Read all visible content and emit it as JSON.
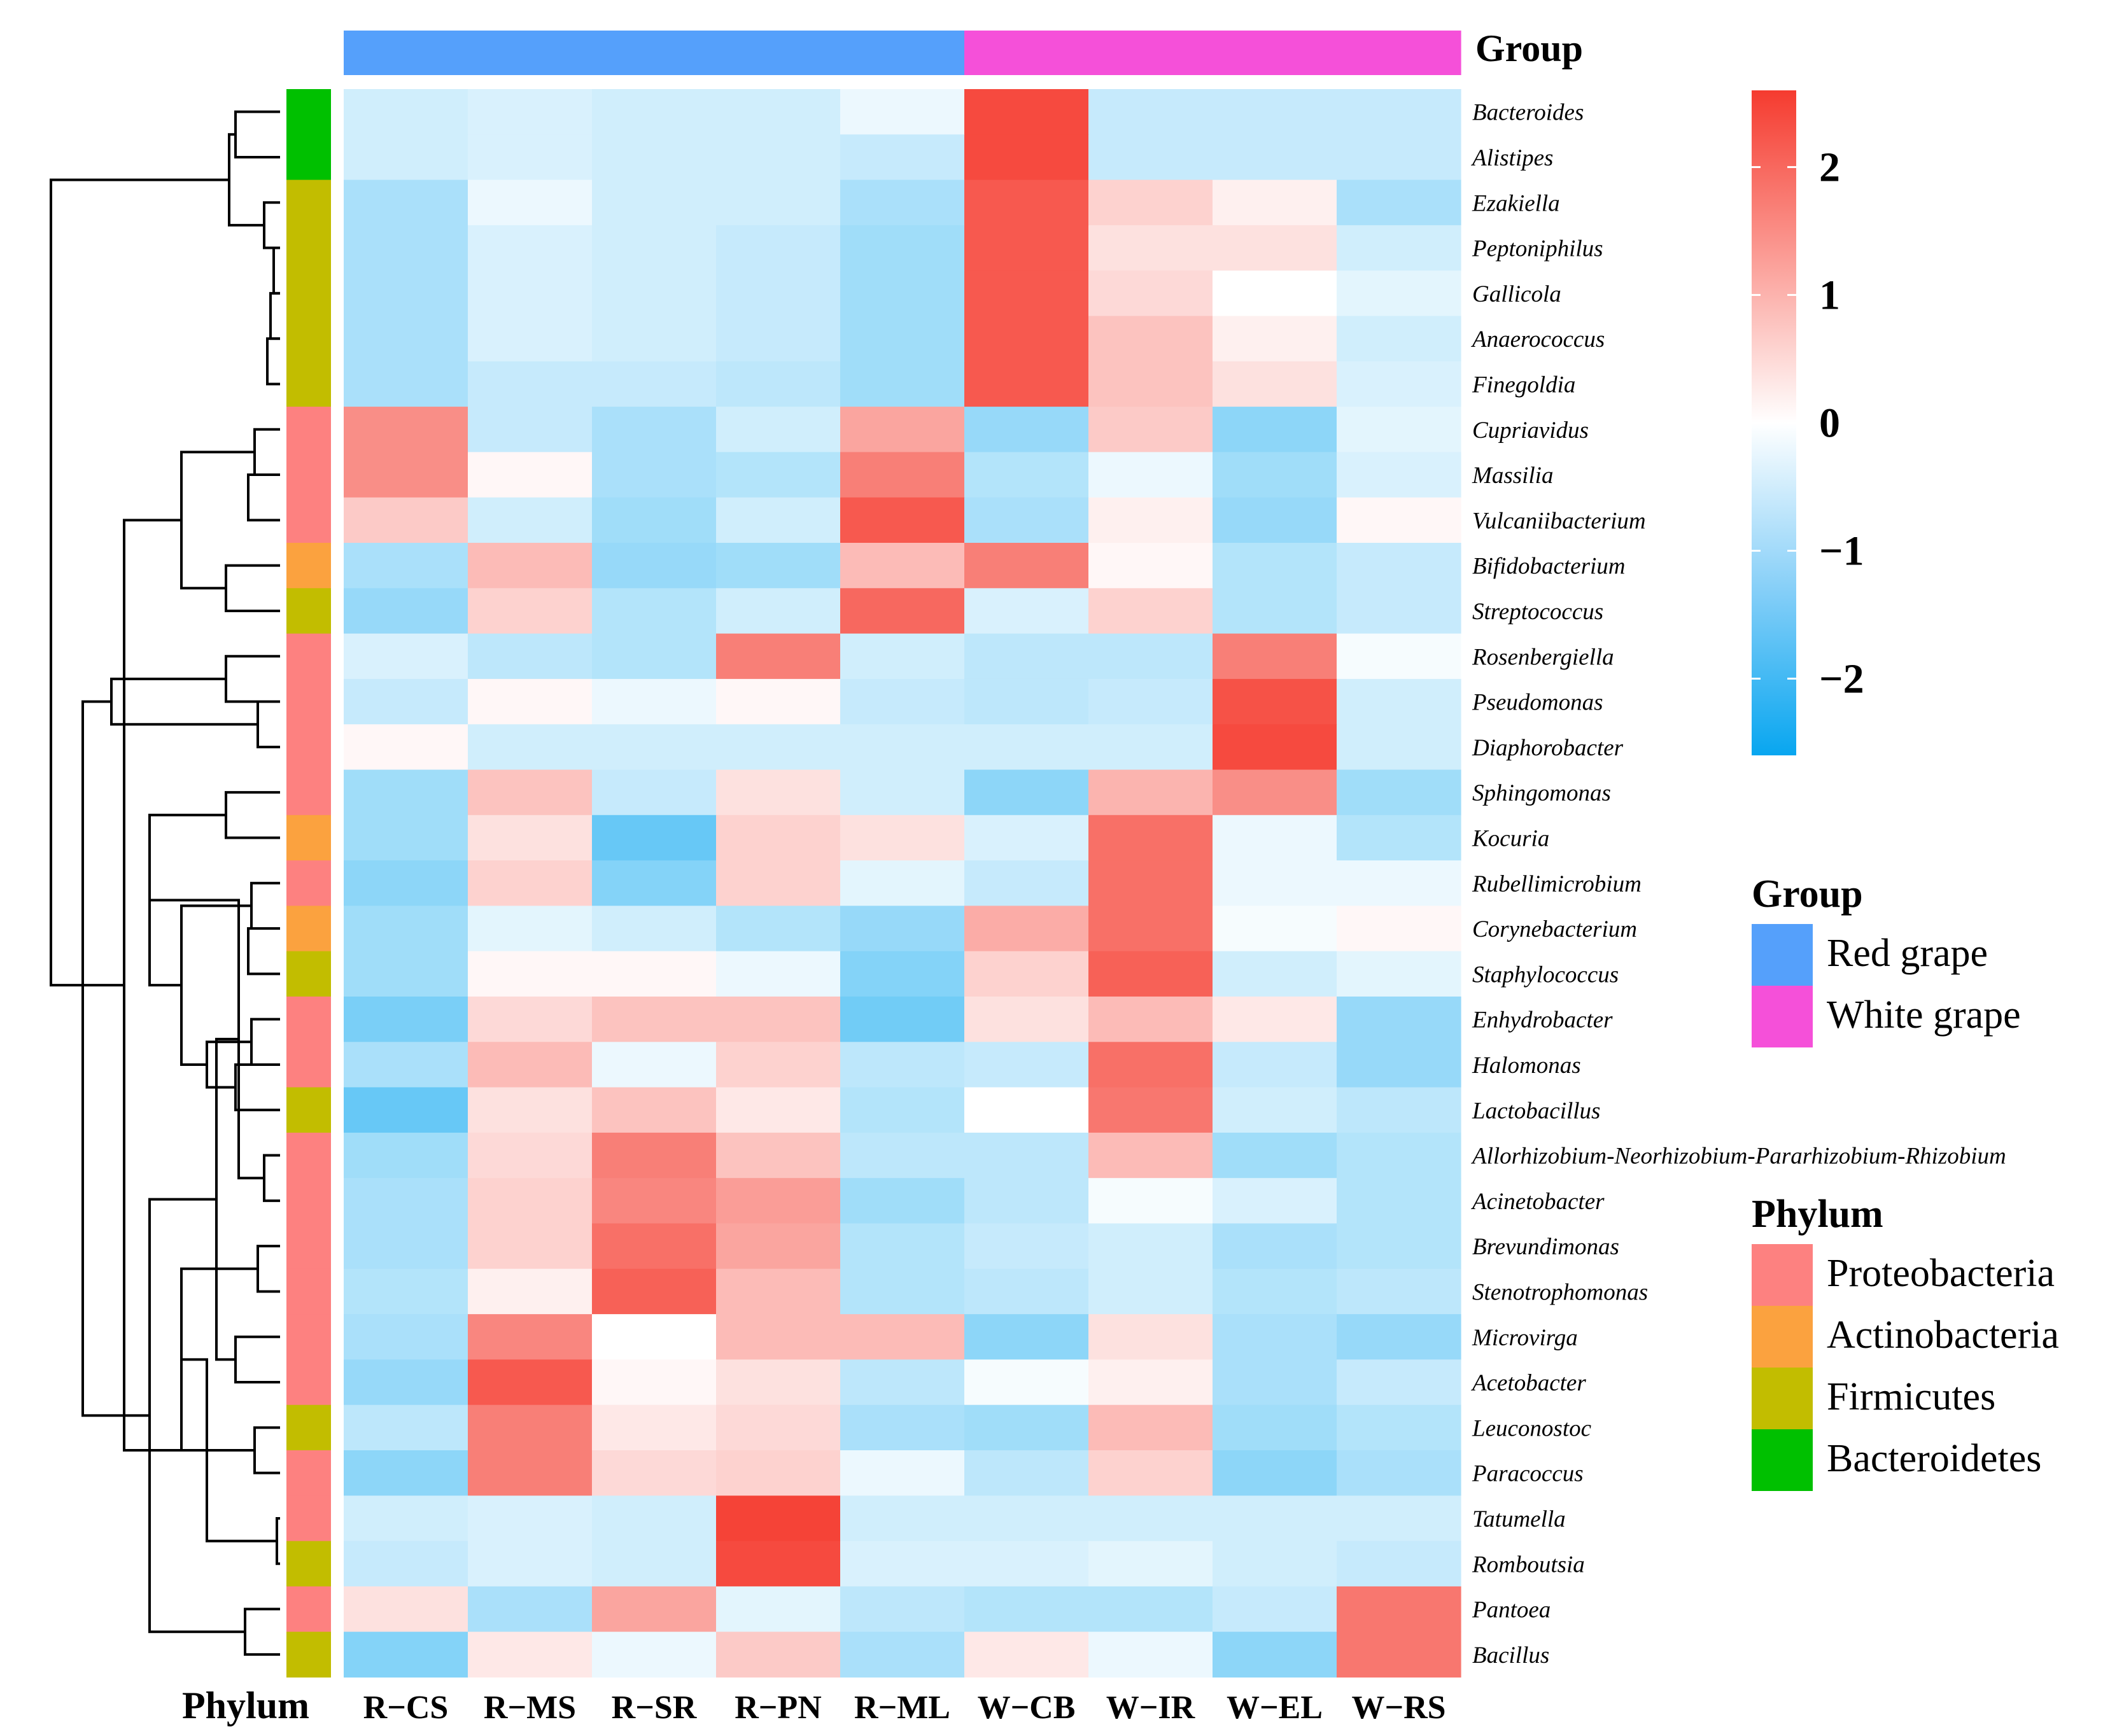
{
  "chart_data": {
    "type": "heatmap",
    "columns": [
      "R−CS",
      "R−MS",
      "R−SR",
      "R−PN",
      "R−ML",
      "W−CB",
      "W−IR",
      "W−EL",
      "W−RS"
    ],
    "column_groups": [
      "Red grape",
      "Red grape",
      "Red grape",
      "Red grape",
      "Red grape",
      "White grape",
      "White grape",
      "White grape",
      "White grape"
    ],
    "rows": [
      {
        "name": "Bacteroides",
        "phylum": "Bacteroidetes",
        "values": [
          -0.5,
          -0.4,
          -0.5,
          -0.5,
          -0.2,
          2.4,
          -0.6,
          -0.6,
          -0.6
        ]
      },
      {
        "name": "Alistipes",
        "phylum": "Bacteroidetes",
        "values": [
          -0.5,
          -0.4,
          -0.5,
          -0.5,
          -0.6,
          2.4,
          -0.6,
          -0.6,
          -0.6
        ]
      },
      {
        "name": "Ezakiella",
        "phylum": "Firmicutes",
        "values": [
          -0.9,
          -0.2,
          -0.5,
          -0.5,
          -0.9,
          2.2,
          0.6,
          0.2,
          -0.9
        ]
      },
      {
        "name": "Peptoniphilus",
        "phylum": "Firmicutes",
        "values": [
          -0.9,
          -0.4,
          -0.5,
          -0.6,
          -1.0,
          2.2,
          0.4,
          0.4,
          -0.5
        ]
      },
      {
        "name": "Gallicola",
        "phylum": "Firmicutes",
        "values": [
          -0.9,
          -0.4,
          -0.5,
          -0.6,
          -1.0,
          2.2,
          0.5,
          0.0,
          -0.3
        ]
      },
      {
        "name": "Anaerococcus",
        "phylum": "Firmicutes",
        "values": [
          -0.9,
          -0.4,
          -0.5,
          -0.6,
          -1.0,
          2.2,
          0.8,
          0.2,
          -0.5
        ]
      },
      {
        "name": "Finegoldia",
        "phylum": "Firmicutes",
        "values": [
          -0.9,
          -0.6,
          -0.6,
          -0.7,
          -1.0,
          2.2,
          0.8,
          0.4,
          -0.4
        ]
      },
      {
        "name": "Cupriavidus",
        "phylum": "Proteobacteria",
        "values": [
          1.5,
          -0.6,
          -0.9,
          -0.5,
          1.2,
          -1.1,
          0.7,
          -1.2,
          -0.3
        ]
      },
      {
        "name": "Massilia",
        "phylum": "Proteobacteria",
        "values": [
          1.5,
          0.1,
          -0.9,
          -0.8,
          1.7,
          -0.8,
          -0.2,
          -1.0,
          -0.4
        ]
      },
      {
        "name": "Vulcaniibacterium",
        "phylum": "Proteobacteria",
        "values": [
          0.7,
          -0.5,
          -1.0,
          -0.5,
          2.2,
          -0.9,
          0.2,
          -1.1,
          0.1
        ]
      },
      {
        "name": "Bifidobacterium",
        "phylum": "Actinobacteria",
        "values": [
          -0.9,
          0.9,
          -1.1,
          -1.0,
          0.9,
          1.7,
          0.1,
          -0.8,
          -0.6
        ]
      },
      {
        "name": "Streptococcus",
        "phylum": "Firmicutes",
        "values": [
          -1.1,
          0.6,
          -0.8,
          -0.5,
          2.0,
          -0.4,
          0.6,
          -0.8,
          -0.6
        ]
      },
      {
        "name": "Rosenbergiella",
        "phylum": "Proteobacteria",
        "values": [
          -0.4,
          -0.7,
          -0.8,
          1.7,
          -0.5,
          -0.7,
          -0.7,
          1.7,
          -0.1
        ]
      },
      {
        "name": "Pseudomonas",
        "phylum": "Proteobacteria",
        "values": [
          -0.6,
          0.1,
          -0.2,
          0.1,
          -0.6,
          -0.7,
          -0.6,
          2.3,
          -0.5
        ]
      },
      {
        "name": "Diaphorobacter",
        "phylum": "Proteobacteria",
        "values": [
          0.1,
          -0.5,
          -0.5,
          -0.5,
          -0.5,
          -0.5,
          -0.5,
          2.4,
          -0.5
        ]
      },
      {
        "name": "Sphingomonas",
        "phylum": "Proteobacteria",
        "values": [
          -1.0,
          0.8,
          -0.6,
          0.4,
          -0.5,
          -1.2,
          1.0,
          1.5,
          -1.0
        ]
      },
      {
        "name": "Kocuria",
        "phylum": "Actinobacteria",
        "values": [
          -1.0,
          0.4,
          -1.6,
          0.6,
          0.4,
          -0.4,
          1.9,
          -0.2,
          -0.8
        ]
      },
      {
        "name": "Rubellimicrobium",
        "phylum": "Proteobacteria",
        "values": [
          -1.2,
          0.6,
          -1.3,
          0.6,
          -0.3,
          -0.6,
          1.9,
          -0.2,
          -0.2
        ]
      },
      {
        "name": "Corynebacterium",
        "phylum": "Actinobacteria",
        "values": [
          -1.0,
          -0.3,
          -0.5,
          -0.8,
          -1.1,
          1.1,
          1.9,
          -0.1,
          0.1
        ]
      },
      {
        "name": "Staphylococcus",
        "phylum": "Firmicutes",
        "values": [
          -1.0,
          0.1,
          0.1,
          -0.2,
          -1.3,
          0.6,
          2.1,
          -0.5,
          -0.3
        ]
      },
      {
        "name": "Enhydrobacter",
        "phylum": "Proteobacteria",
        "values": [
          -1.4,
          0.5,
          0.8,
          0.8,
          -1.5,
          0.4,
          0.9,
          0.3,
          -1.1
        ]
      },
      {
        "name": "Halomonas",
        "phylum": "Proteobacteria",
        "values": [
          -0.9,
          0.9,
          -0.2,
          0.6,
          -0.7,
          -0.6,
          1.9,
          -0.6,
          -1.1
        ]
      },
      {
        "name": "Lactobacillus",
        "phylum": "Firmicutes",
        "values": [
          -1.6,
          0.4,
          0.8,
          0.3,
          -0.8,
          0.0,
          1.8,
          -0.5,
          -0.7
        ]
      },
      {
        "name": "Allorhizobium-Neorhizobium-Pararhizobium-Rhizobium",
        "phylum": "Proteobacteria",
        "values": [
          -1.0,
          0.5,
          1.7,
          0.8,
          -0.7,
          -0.7,
          0.9,
          -1.0,
          -0.8
        ]
      },
      {
        "name": "Acinetobacter",
        "phylum": "Proteobacteria",
        "values": [
          -0.9,
          0.6,
          1.6,
          1.3,
          -1.0,
          -0.7,
          -0.1,
          -0.4,
          -0.8
        ]
      },
      {
        "name": "Brevundimonas",
        "phylum": "Proteobacteria",
        "values": [
          -0.9,
          0.6,
          1.9,
          1.2,
          -0.8,
          -0.6,
          -0.5,
          -0.9,
          -0.8
        ]
      },
      {
        "name": "Stenotrophomonas",
        "phylum": "Proteobacteria",
        "values": [
          -0.8,
          0.2,
          2.1,
          0.9,
          -0.8,
          -0.7,
          -0.5,
          -0.8,
          -0.7
        ]
      },
      {
        "name": "Microvirga",
        "phylum": "Proteobacteria",
        "values": [
          -0.9,
          1.6,
          0.0,
          0.9,
          0.9,
          -1.2,
          0.4,
          -0.9,
          -1.1
        ]
      },
      {
        "name": "Acetobacter",
        "phylum": "Proteobacteria",
        "values": [
          -1.1,
          2.2,
          0.1,
          0.4,
          -0.7,
          -0.1,
          0.2,
          -0.9,
          -0.6
        ]
      },
      {
        "name": "Leuconostoc",
        "phylum": "Firmicutes",
        "values": [
          -0.7,
          1.7,
          0.3,
          0.5,
          -0.9,
          -1.0,
          0.9,
          -1.0,
          -0.8
        ]
      },
      {
        "name": "Paracoccus",
        "phylum": "Proteobacteria",
        "values": [
          -1.2,
          1.7,
          0.5,
          0.6,
          -0.2,
          -0.7,
          0.6,
          -1.2,
          -0.9
        ]
      },
      {
        "name": "Tatumella",
        "phylum": "Proteobacteria",
        "values": [
          -0.5,
          -0.4,
          -0.5,
          2.5,
          -0.5,
          -0.5,
          -0.5,
          -0.5,
          -0.5
        ]
      },
      {
        "name": "Romboutsia",
        "phylum": "Firmicutes",
        "values": [
          -0.6,
          -0.4,
          -0.5,
          2.4,
          -0.4,
          -0.4,
          -0.3,
          -0.5,
          -0.6
        ]
      },
      {
        "name": "Pantoea",
        "phylum": "Proteobacteria",
        "values": [
          0.4,
          -0.9,
          1.2,
          -0.3,
          -0.7,
          -0.8,
          -0.8,
          -0.6,
          1.8
        ]
      },
      {
        "name": "Bacillus",
        "phylum": "Firmicutes",
        "values": [
          -1.3,
          0.3,
          -0.2,
          0.7,
          -0.9,
          0.3,
          -0.2,
          -1.2,
          1.8
        ]
      }
    ],
    "color_scale": {
      "min": -2.6,
      "max": 2.6,
      "ticks": [
        "2",
        "1",
        "0",
        "−1",
        "−2"
      ],
      "tick_values": [
        2,
        1,
        0,
        -1,
        -2
      ]
    },
    "annotation_titles": {
      "group": "Group",
      "phylum": "Phylum"
    },
    "group_legend": [
      {
        "label": "Red grape",
        "color": "#55a0fb"
      },
      {
        "label": "White grape",
        "color": "#f550d9"
      }
    ],
    "phylum_legend": [
      {
        "label": "Proteobacteria",
        "color": "#fd8180"
      },
      {
        "label": "Actinobacteria",
        "color": "#fba23f"
      },
      {
        "label": "Firmicutes",
        "color": "#c2bd00"
      },
      {
        "label": "Bacteroidetes",
        "color": "#00c000"
      }
    ],
    "colors": {
      "high": "#f53b2f",
      "mid": "#ffffff",
      "low": "#08a6f0"
    }
  }
}
